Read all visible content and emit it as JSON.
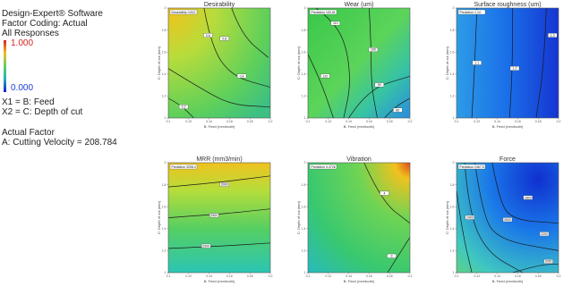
{
  "info": {
    "software": "Design-Expert® Software",
    "coding": "Factor Coding: Actual",
    "responses": "All Responses",
    "legend_max": "1.000",
    "legend_min": "0.000",
    "x1": "X1 = B: Feed",
    "x2": "X2 = C: Depth of cut",
    "actual_factor_title": "Actual Factor",
    "actual_factor": "A: Cutting Velocity = 208.784"
  },
  "colors": {
    "legend_top": "#d42020",
    "legend_bottom": "#1020c8"
  },
  "chart_data": [
    {
      "type": "heatmap",
      "title": "Desirability",
      "xlabel": "B: Feed (mm/tooth)",
      "ylabel": "C: Depth of cut (mm)",
      "xlim": [
        0.1,
        0.2
      ],
      "ylim": [
        1,
        2
      ],
      "xticks": [
        "0.1",
        "0.12",
        "0.14",
        "0.16",
        "0.18",
        "0.2"
      ],
      "yticks": [
        "1",
        "1.2",
        "1.4",
        "1.6",
        "1.8",
        "2"
      ],
      "prediction_label": "Desirability 0.812",
      "colormap": "desirability",
      "contour_labels": [
        "0.8",
        "0.6",
        "0.4",
        "0.2"
      ]
    },
    {
      "type": "heatmap",
      "title": "Wear (um)",
      "xlabel": "B: Feed (mm/tooth)",
      "ylabel": "C: Depth of cut (mm)",
      "xlim": [
        0.1,
        0.2
      ],
      "ylim": [
        1,
        2
      ],
      "xticks": [
        "0.1",
        "0.12",
        "0.14",
        "0.16",
        "0.18",
        "0.2"
      ],
      "yticks": [
        "1",
        "1.2",
        "1.4",
        "1.6",
        "1.8",
        "2"
      ],
      "prediction_label": "Prediction 100.61",
      "colormap": "wear",
      "contour_labels": [
        "110",
        "120",
        "100",
        "90",
        "80"
      ]
    },
    {
      "type": "heatmap",
      "title": "Surface roughness (um)",
      "xlabel": "B: Feed (mm/tooth)",
      "ylabel": "C: Depth of cut (mm)",
      "xlim": [
        0.1,
        0.2
      ],
      "ylim": [
        1,
        2
      ],
      "xticks": [
        "0.1",
        "0.12",
        "0.14",
        "0.16",
        "0.18",
        "0.2"
      ],
      "yticks": [
        "1",
        "1.2",
        "1.4",
        "1.6",
        "1.8",
        "2"
      ],
      "prediction_label": "Prediction 1.14",
      "colormap": "roughness",
      "contour_labels": [
        "1.1",
        "1.2",
        "1.3"
      ]
    },
    {
      "type": "heatmap",
      "title": "MRR (mm3/min)",
      "xlabel": "B: Feed (mm/tooth)",
      "ylabel": "C: Depth of cut (mm)",
      "xlim": [
        0.1,
        0.2
      ],
      "ylim": [
        1,
        2
      ],
      "xticks": [
        "0.1",
        "0.12",
        "0.14",
        "0.16",
        "0.18",
        "0.2"
      ],
      "yticks": [
        "1",
        "1.2",
        "1.4",
        "1.6",
        "1.8",
        "2"
      ],
      "prediction_label": "Prediction 3208.4",
      "colormap": "mrr",
      "contour_labels": [
        "3000",
        "2500",
        "2000"
      ]
    },
    {
      "type": "heatmap",
      "title": "Vibration",
      "xlabel": "B: Feed (mm/tooth)",
      "ylabel": "C: Depth of cut (mm)",
      "xlim": [
        0.1,
        0.2
      ],
      "ylim": [
        1,
        2
      ],
      "xticks": [
        "0.1",
        "0.12",
        "0.14",
        "0.16",
        "0.18",
        "0.2"
      ],
      "yticks": [
        "1",
        "1.2",
        "1.4",
        "1.6",
        "1.8",
        "2"
      ],
      "prediction_label": "Prediction 4.4726",
      "colormap": "vibration",
      "contour_labels": [
        "4",
        "3"
      ]
    },
    {
      "type": "heatmap",
      "title": "Force",
      "xlabel": "B: Feed (mm/tooth)",
      "ylabel": "C: Depth of cut (mm)",
      "xlim": [
        0.1,
        0.2
      ],
      "ylim": [
        1,
        2
      ],
      "xticks": [
        "0.1",
        "0.12",
        "0.14",
        "0.16",
        "0.18",
        "0.2"
      ],
      "yticks": [
        "1",
        "1.2",
        "1.4",
        "1.6",
        "1.8",
        "2"
      ],
      "prediction_label": "Prediction 2467.5",
      "colormap": "force",
      "contour_labels": [
        "2800",
        "2600",
        "2400",
        "2200",
        "2000"
      ]
    }
  ]
}
